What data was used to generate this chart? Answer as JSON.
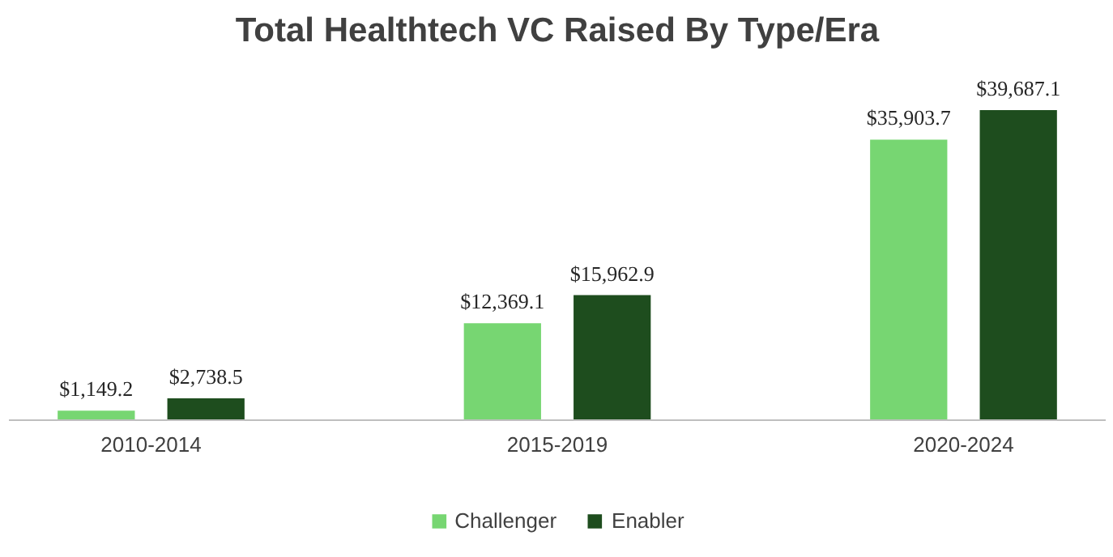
{
  "chart_data": {
    "type": "bar",
    "title": "Total Healthtech VC Raised By Type/Era",
    "categories": [
      "2010-2014",
      "2015-2019",
      "2020-2024"
    ],
    "series": [
      {
        "name": "Challenger",
        "color": "#77d672",
        "values": [
          1149.2,
          12369.1,
          35903.7
        ],
        "value_labels": [
          "$1,149.2",
          "$12,369.1",
          "$35,903.7"
        ]
      },
      {
        "name": "Enabler",
        "color": "#1e4d1e",
        "values": [
          2738.5,
          15962.9,
          39687.1
        ],
        "value_labels": [
          "$2,738.5",
          "$15,962.9",
          "$39,687.1"
        ]
      }
    ],
    "legend": "bottom"
  }
}
